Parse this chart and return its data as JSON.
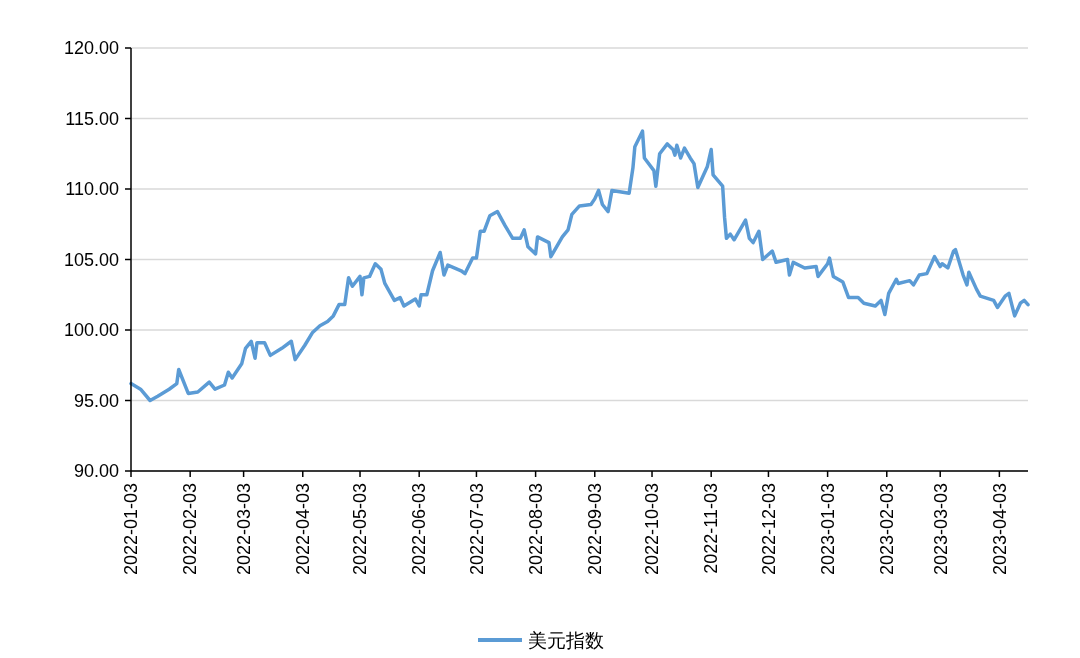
{
  "chart_data": {
    "type": "line",
    "x": [
      "2022-01-03",
      "2022-01-08",
      "2022-01-13",
      "2022-01-17",
      "2022-01-23",
      "2022-01-27",
      "2022-01-28",
      "2022-02-02",
      "2022-02-07",
      "2022-02-13",
      "2022-02-16",
      "2022-02-21",
      "2022-02-23",
      "2022-02-25",
      "2022-03-02",
      "2022-03-04",
      "2022-03-07",
      "2022-03-09",
      "2022-03-10",
      "2022-03-14",
      "2022-03-17",
      "2022-03-23",
      "2022-03-28",
      "2022-03-30",
      "2022-04-04",
      "2022-04-08",
      "2022-04-12",
      "2022-04-16",
      "2022-04-19",
      "2022-04-22",
      "2022-04-25",
      "2022-04-27",
      "2022-04-29",
      "2022-05-03",
      "2022-05-04",
      "2022-05-05",
      "2022-05-08",
      "2022-05-11",
      "2022-05-14",
      "2022-05-16",
      "2022-05-21",
      "2022-05-24",
      "2022-05-26",
      "2022-06-01",
      "2022-06-03",
      "2022-06-04",
      "2022-06-07",
      "2022-06-10",
      "2022-06-14",
      "2022-06-16",
      "2022-06-18",
      "2022-06-25",
      "2022-06-27",
      "2022-07-01",
      "2022-07-03",
      "2022-07-05",
      "2022-07-07",
      "2022-07-10",
      "2022-07-14",
      "2022-07-18",
      "2022-07-22",
      "2022-07-26",
      "2022-07-28",
      "2022-07-30",
      "2022-08-03",
      "2022-08-04",
      "2022-08-10",
      "2022-08-11",
      "2022-08-17",
      "2022-08-20",
      "2022-08-22",
      "2022-08-26",
      "2022-09-01",
      "2022-09-03",
      "2022-09-05",
      "2022-09-07",
      "2022-09-10",
      "2022-09-12",
      "2022-09-21",
      "2022-09-23",
      "2022-09-24",
      "2022-09-28",
      "2022-09-29",
      "2022-10-04",
      "2022-10-05",
      "2022-10-07",
      "2022-10-11",
      "2022-10-14",
      "2022-10-15",
      "2022-10-16",
      "2022-10-18",
      "2022-10-20",
      "2022-10-23",
      "2022-10-25",
      "2022-10-27",
      "2022-11-01",
      "2022-11-03",
      "2022-11-04",
      "2022-11-09",
      "2022-11-10",
      "2022-11-11",
      "2022-11-13",
      "2022-11-15",
      "2022-11-21",
      "2022-11-23",
      "2022-11-25",
      "2022-11-28",
      "2022-11-30",
      "2022-12-05",
      "2022-12-07",
      "2022-12-13",
      "2022-12-14",
      "2022-12-16",
      "2022-12-22",
      "2022-12-28",
      "2022-12-29",
      "2023-01-03",
      "2023-01-04",
      "2023-01-06",
      "2023-01-11",
      "2023-01-14",
      "2023-01-19",
      "2023-01-22",
      "2023-01-28",
      "2023-01-31",
      "2023-02-02",
      "2023-02-04",
      "2023-02-08",
      "2023-02-09",
      "2023-02-15",
      "2023-02-17",
      "2023-02-20",
      "2023-02-24",
      "2023-02-28",
      "2023-03-03",
      "2023-03-04",
      "2023-03-07",
      "2023-03-10",
      "2023-03-11",
      "2023-03-15",
      "2023-03-17",
      "2023-03-18",
      "2023-03-22",
      "2023-03-24",
      "2023-03-31",
      "2023-04-02",
      "2023-04-06",
      "2023-04-08",
      "2023-04-11",
      "2023-04-14",
      "2023-04-16",
      "2023-04-18"
    ],
    "series": [
      {
        "name": "美元指数",
        "color": "#5b9bd5",
        "values": [
          96.2,
          95.8,
          95.0,
          95.3,
          95.8,
          96.2,
          97.2,
          95.5,
          95.6,
          96.3,
          95.8,
          96.1,
          97.0,
          96.6,
          97.6,
          98.7,
          99.2,
          98.0,
          99.1,
          99.1,
          98.2,
          98.7,
          99.2,
          97.9,
          98.9,
          99.8,
          100.3,
          100.6,
          101.0,
          101.8,
          101.8,
          103.7,
          103.1,
          103.8,
          102.5,
          103.7,
          103.8,
          104.7,
          104.3,
          103.3,
          102.1,
          102.3,
          101.7,
          102.2,
          101.7,
          102.5,
          102.5,
          104.2,
          105.5,
          103.9,
          104.6,
          104.2,
          104.0,
          105.1,
          105.1,
          107.0,
          107.0,
          108.1,
          108.4,
          107.4,
          106.5,
          106.5,
          107.1,
          105.9,
          105.4,
          106.6,
          106.2,
          105.2,
          106.6,
          107.1,
          108.2,
          108.8,
          108.9,
          109.3,
          109.9,
          108.9,
          108.4,
          109.9,
          109.7,
          111.5,
          113.0,
          114.1,
          112.2,
          111.3,
          110.2,
          112.5,
          113.2,
          112.8,
          112.4,
          113.1,
          112.2,
          112.9,
          112.2,
          111.8,
          110.1,
          111.6,
          112.8,
          111.0,
          110.2,
          108.0,
          106.5,
          106.8,
          106.4,
          107.8,
          106.5,
          106.2,
          107.0,
          105.0,
          105.6,
          104.8,
          105.0,
          103.9,
          104.8,
          104.4,
          104.5,
          103.8,
          104.7,
          105.1,
          103.8,
          103.4,
          102.3,
          102.3,
          101.9,
          101.7,
          102.1,
          101.1,
          102.6,
          103.6,
          103.3,
          103.5,
          103.2,
          103.9,
          104.0,
          105.2,
          104.5,
          104.7,
          104.4,
          105.6,
          105.7,
          103.9,
          103.2,
          104.1,
          102.9,
          102.4,
          102.1,
          101.6,
          102.4,
          102.6,
          101.0,
          101.9,
          102.1,
          101.8
        ]
      }
    ],
    "xlim": [
      "2022-01-03",
      "2023-04-18"
    ],
    "xticks": [
      "2022-01-03",
      "2022-02-03",
      "2022-03-03",
      "2022-04-03",
      "2022-05-03",
      "2022-06-03",
      "2022-07-03",
      "2022-08-03",
      "2022-09-03",
      "2022-10-03",
      "2022-11-03",
      "2022-12-03",
      "2023-01-03",
      "2023-02-03",
      "2023-03-03",
      "2023-04-03"
    ],
    "ylim": [
      90,
      120
    ],
    "yticks": [
      {
        "value": 90,
        "label": "90.00"
      },
      {
        "value": 95,
        "label": "95.00"
      },
      {
        "value": 100,
        "label": "100.00"
      },
      {
        "value": 105,
        "label": "105.00"
      },
      {
        "value": 110,
        "label": "110.00"
      },
      {
        "value": 115,
        "label": "115.00"
      },
      {
        "value": 120,
        "label": "120.00"
      }
    ],
    "grid": "y",
    "legend": "bottom",
    "marker": "none",
    "line_style": "solid"
  }
}
